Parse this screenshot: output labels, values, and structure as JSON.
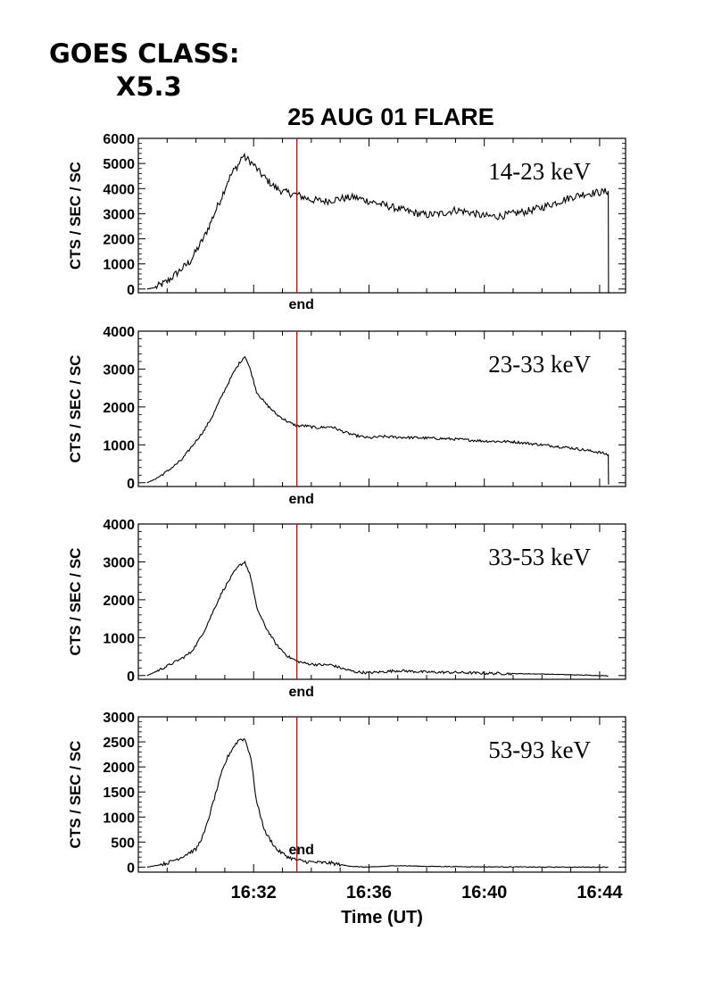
{
  "header": {
    "goes_line1": "GOES CLASS:",
    "goes_line2": "X5.3"
  },
  "chart_data": {
    "type": "line",
    "title": "25 AUG 01 FLARE",
    "xlabel": "Time (UT)",
    "ylabel": "CTS / SEC / SC",
    "x_ticks": [
      "16:32",
      "16:36",
      "16:40",
      "16:44"
    ],
    "x_tick_minutes": [
      32,
      36,
      40,
      44
    ],
    "xlim_minutes_after_16h": [
      28.0,
      44.9
    ],
    "marker": {
      "label": "end",
      "time_minutes_after_16h": 33.5,
      "color": "#cc0000"
    },
    "line_color": "#000000",
    "series": [
      {
        "name": "14-23 keV",
        "ylim": [
          -150,
          6000
        ],
        "y_ticks": [
          0,
          1000,
          2000,
          3000,
          4000,
          5000,
          6000
        ],
        "noise": 150,
        "points": [
          [
            28.3,
            0
          ],
          [
            28.6,
            60
          ],
          [
            29.0,
            300
          ],
          [
            29.5,
            800
          ],
          [
            29.8,
            1100
          ],
          [
            30.0,
            1500
          ],
          [
            30.3,
            2100
          ],
          [
            30.6,
            2900
          ],
          [
            30.9,
            3700
          ],
          [
            31.1,
            4300
          ],
          [
            31.3,
            4700
          ],
          [
            31.5,
            5000
          ],
          [
            31.6,
            5300
          ],
          [
            31.8,
            5150
          ],
          [
            32.0,
            4950
          ],
          [
            32.2,
            4650
          ],
          [
            32.5,
            4300
          ],
          [
            32.8,
            4000
          ],
          [
            33.1,
            3850
          ],
          [
            33.5,
            3750
          ],
          [
            34.0,
            3550
          ],
          [
            34.5,
            3500
          ],
          [
            35.0,
            3600
          ],
          [
            35.5,
            3650
          ],
          [
            36.0,
            3500
          ],
          [
            36.5,
            3350
          ],
          [
            37.0,
            3200
          ],
          [
            37.5,
            3050
          ],
          [
            38.0,
            2950
          ],
          [
            38.5,
            3000
          ],
          [
            39.0,
            3150
          ],
          [
            39.5,
            3050
          ],
          [
            40.0,
            2900
          ],
          [
            40.5,
            2900
          ],
          [
            41.0,
            3000
          ],
          [
            41.5,
            3100
          ],
          [
            42.0,
            3250
          ],
          [
            42.5,
            3450
          ],
          [
            43.0,
            3650
          ],
          [
            43.5,
            3800
          ],
          [
            44.0,
            3850
          ],
          [
            44.3,
            3900
          ],
          [
            44.31,
            -150
          ]
        ]
      },
      {
        "name": "23-33 keV",
        "ylim": [
          -100,
          4000
        ],
        "y_ticks": [
          0,
          1000,
          2000,
          3000,
          4000
        ],
        "noise": 35,
        "points": [
          [
            28.3,
            0
          ],
          [
            28.6,
            100
          ],
          [
            29.0,
            300
          ],
          [
            29.5,
            600
          ],
          [
            29.8,
            900
          ],
          [
            30.0,
            1100
          ],
          [
            30.3,
            1400
          ],
          [
            30.6,
            1800
          ],
          [
            30.9,
            2300
          ],
          [
            31.1,
            2600
          ],
          [
            31.3,
            2900
          ],
          [
            31.5,
            3150
          ],
          [
            31.7,
            3350
          ],
          [
            31.9,
            2950
          ],
          [
            32.1,
            2400
          ],
          [
            32.4,
            2100
          ],
          [
            32.8,
            1800
          ],
          [
            33.2,
            1600
          ],
          [
            33.5,
            1500
          ],
          [
            33.8,
            1500
          ],
          [
            34.2,
            1450
          ],
          [
            34.7,
            1480
          ],
          [
            35.1,
            1350
          ],
          [
            35.5,
            1250
          ],
          [
            36.0,
            1180
          ],
          [
            36.5,
            1220
          ],
          [
            37.0,
            1200
          ],
          [
            38.0,
            1180
          ],
          [
            39.0,
            1150
          ],
          [
            40.0,
            1100
          ],
          [
            41.0,
            1080
          ],
          [
            42.0,
            1000
          ],
          [
            43.0,
            920
          ],
          [
            44.0,
            800
          ],
          [
            44.3,
            740
          ],
          [
            44.31,
            -50
          ]
        ]
      },
      {
        "name": "33-53 keV",
        "ylim": [
          -100,
          4000
        ],
        "y_ticks": [
          0,
          1000,
          2000,
          3000,
          4000
        ],
        "noise": 35,
        "points": [
          [
            28.3,
            0
          ],
          [
            28.6,
            100
          ],
          [
            29.0,
            250
          ],
          [
            29.5,
            450
          ],
          [
            29.8,
            600
          ],
          [
            30.0,
            800
          ],
          [
            30.3,
            1200
          ],
          [
            30.6,
            1700
          ],
          [
            30.9,
            2200
          ],
          [
            31.1,
            2450
          ],
          [
            31.3,
            2700
          ],
          [
            31.5,
            2900
          ],
          [
            31.7,
            3000
          ],
          [
            31.9,
            2600
          ],
          [
            32.1,
            1800
          ],
          [
            32.4,
            1300
          ],
          [
            32.8,
            800
          ],
          [
            33.2,
            500
          ],
          [
            33.5,
            380
          ],
          [
            33.8,
            320
          ],
          [
            34.3,
            280
          ],
          [
            34.7,
            280
          ],
          [
            35.1,
            180
          ],
          [
            35.5,
            100
          ],
          [
            36.0,
            70
          ],
          [
            37.0,
            130
          ],
          [
            38.0,
            90
          ],
          [
            39.0,
            80
          ],
          [
            40.0,
            60
          ],
          [
            41.0,
            50
          ],
          [
            42.0,
            40
          ],
          [
            43.0,
            20
          ],
          [
            44.0,
            0
          ],
          [
            44.3,
            -10
          ]
        ]
      },
      {
        "name": "53-93 keV",
        "ylim": [
          -100,
          3000
        ],
        "y_ticks": [
          0,
          500,
          1000,
          1500,
          2000,
          2500,
          3000
        ],
        "noise": 35,
        "points": [
          [
            28.3,
            0
          ],
          [
            28.6,
            30
          ],
          [
            29.0,
            80
          ],
          [
            29.5,
            200
          ],
          [
            29.8,
            300
          ],
          [
            30.0,
            350
          ],
          [
            30.3,
            700
          ],
          [
            30.6,
            1300
          ],
          [
            30.9,
            1900
          ],
          [
            31.1,
            2200
          ],
          [
            31.3,
            2400
          ],
          [
            31.5,
            2550
          ],
          [
            31.7,
            2550
          ],
          [
            31.9,
            2200
          ],
          [
            32.1,
            1300
          ],
          [
            32.4,
            700
          ],
          [
            32.8,
            350
          ],
          [
            33.2,
            200
          ],
          [
            33.5,
            140
          ],
          [
            33.8,
            110
          ],
          [
            34.3,
            90
          ],
          [
            34.7,
            80
          ],
          [
            35.1,
            40
          ],
          [
            35.5,
            10
          ],
          [
            36.0,
            0
          ],
          [
            37.0,
            30
          ],
          [
            38.0,
            15
          ],
          [
            39.0,
            10
          ],
          [
            40.0,
            5
          ],
          [
            41.0,
            5
          ],
          [
            42.0,
            0
          ],
          [
            43.0,
            0
          ],
          [
            44.3,
            0
          ]
        ]
      }
    ]
  }
}
